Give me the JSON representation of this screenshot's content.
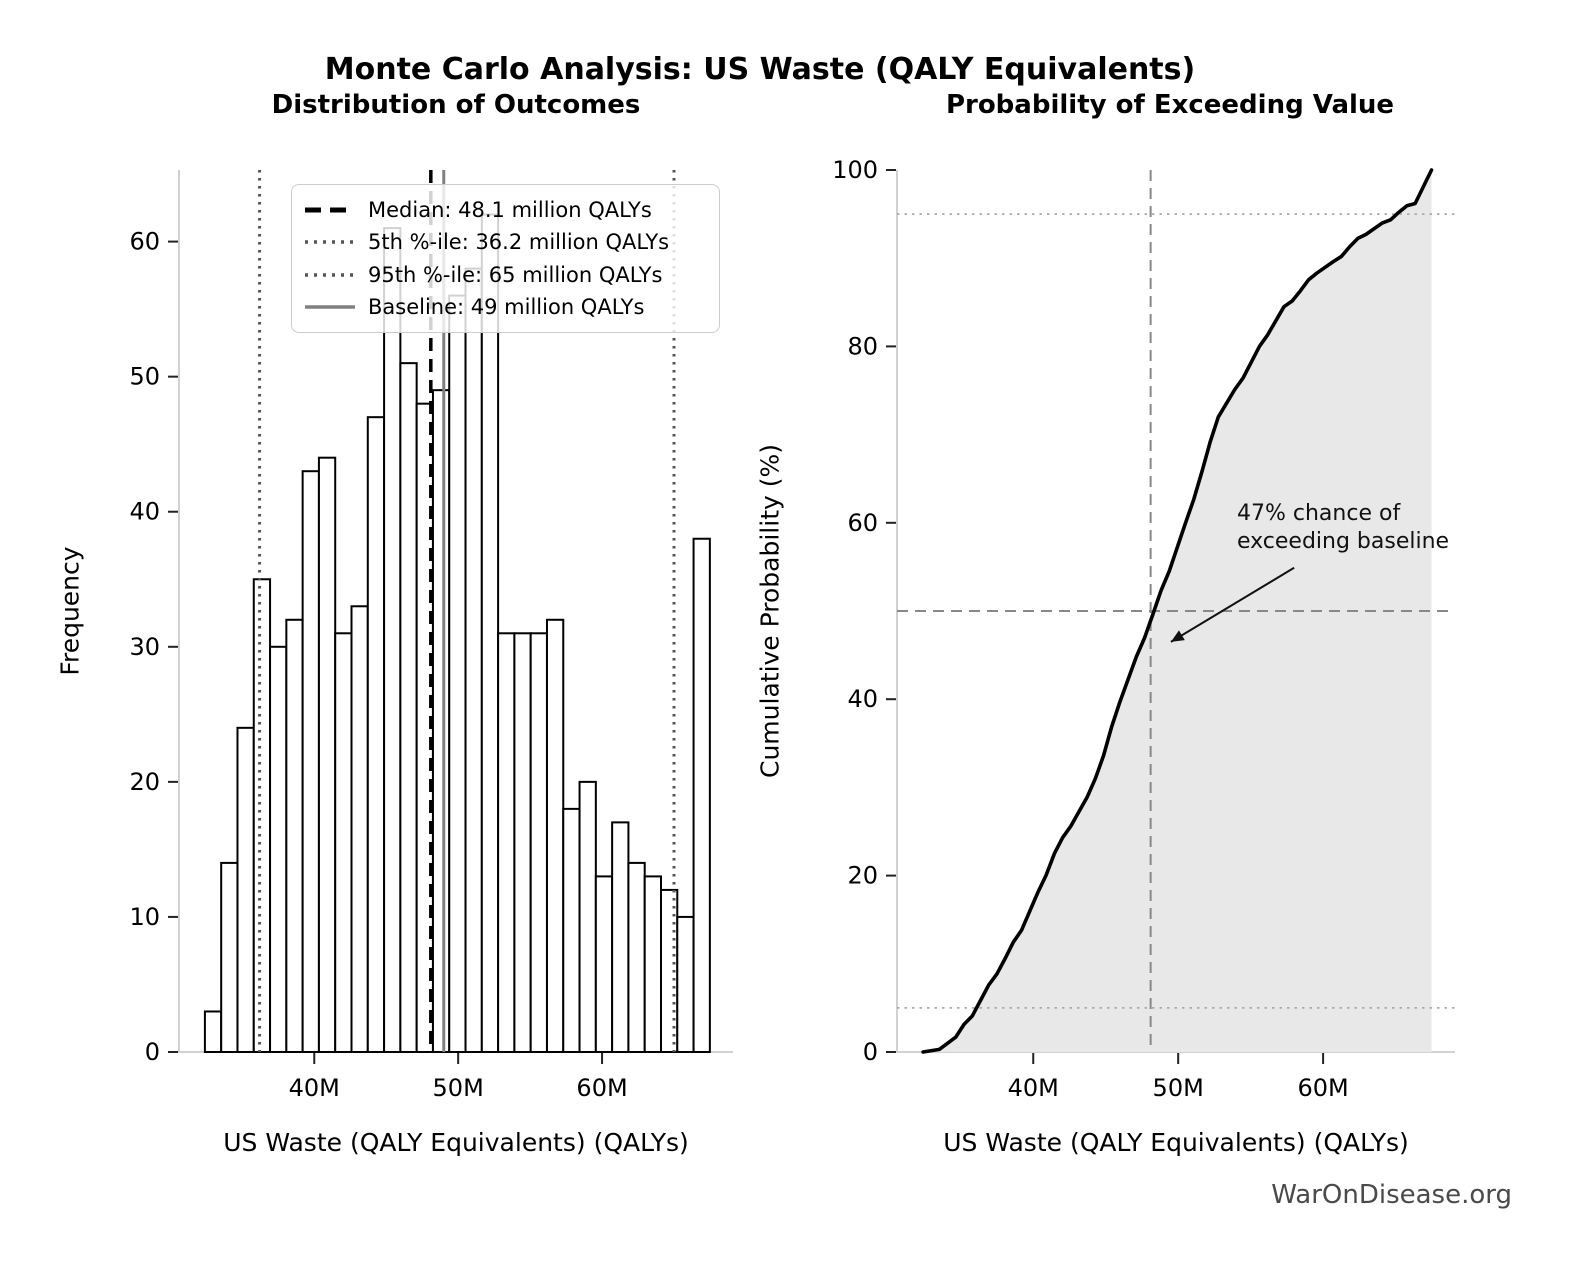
{
  "page": {
    "suptitle": "Monte Carlo Analysis: US Waste (QALY Equivalents)",
    "footer": "WarOnDisease.org"
  },
  "colors": {
    "bar_fill": "#ffffff",
    "bar_edge": "#000000",
    "median": "#000000",
    "percentile": "#555555",
    "baseline": "#808080",
    "cdf_line": "#000000",
    "cdf_fill": "#e8e8e8",
    "ref_dashed": "#888888",
    "ref_dotted": "#aaaaaa",
    "spine": "#cccccc",
    "tick": "#222222",
    "footer_text": "#4a4a4a"
  },
  "chart_data": [
    {
      "type": "bar",
      "subtype": "histogram",
      "title": "Distribution of Outcomes",
      "xlabel": "US Waste (QALY Equivalents) (QALYs)",
      "ylabel": "Frequency",
      "xlim_millions": [
        30.6,
        69.1
      ],
      "ylim": [
        0,
        65.3
      ],
      "x_ticks": [
        {
          "value_million": 40,
          "label": "40M"
        },
        {
          "value_million": 50,
          "label": "50M"
        },
        {
          "value_million": 60,
          "label": "60M"
        }
      ],
      "y_ticks": [
        0,
        10,
        20,
        30,
        40,
        50,
        60
      ],
      "bin_start_million": 32.4,
      "bin_width_million": 1.132,
      "frequencies": [
        3,
        14,
        24,
        35,
        30,
        32,
        43,
        44,
        31,
        33,
        47,
        61,
        51,
        48,
        49,
        56,
        58,
        62,
        31,
        31,
        31,
        32,
        18,
        20,
        13,
        17,
        14,
        13,
        12,
        10,
        38
      ],
      "ref_lines": [
        {
          "id": "median",
          "value_million": 48.1,
          "style": "dashed",
          "color_key": "median",
          "width": 3.5,
          "label": "Median: 48.1 million QALYs"
        },
        {
          "id": "p5",
          "value_million": 36.2,
          "style": "dotted",
          "color_key": "percentile",
          "width": 3,
          "label": "5th %-ile: 36.2 million QALYs"
        },
        {
          "id": "p95",
          "value_million": 65,
          "style": "dotted",
          "color_key": "percentile",
          "width": 3,
          "label": "95th %-ile: 65 million QALYs"
        },
        {
          "id": "baseline",
          "value_million": 49,
          "style": "solid",
          "color_key": "baseline",
          "width": 3,
          "label": "Baseline: 49 million QALYs"
        }
      ],
      "legend_position": "upper-left-inside"
    },
    {
      "type": "line",
      "subtype": "empirical-cdf",
      "title": "Probability of Exceeding Value",
      "xlabel": "US Waste (QALY Equivalents) (QALYs)",
      "ylabel": "Cumulative Probability (%)",
      "xlim_millions": [
        30.6,
        69.1
      ],
      "ylim": [
        0,
        100
      ],
      "x_ticks": [
        {
          "value_million": 40,
          "label": "40M"
        },
        {
          "value_million": 50,
          "label": "50M"
        },
        {
          "value_million": 60,
          "label": "60M"
        }
      ],
      "y_ticks": [
        0,
        20,
        40,
        60,
        80,
        100
      ],
      "points": [
        {
          "x_million": 32.4,
          "cum_pct": 0.0
        },
        {
          "x_million": 33.53,
          "cum_pct": 0.3
        },
        {
          "x_million": 34.66,
          "cum_pct": 1.7
        },
        {
          "x_million": 35.8,
          "cum_pct": 4.1
        },
        {
          "x_million": 36.93,
          "cum_pct": 7.6
        },
        {
          "x_million": 38.06,
          "cum_pct": 10.6
        },
        {
          "x_million": 39.19,
          "cum_pct": 13.8
        },
        {
          "x_million": 40.32,
          "cum_pct": 18.1
        },
        {
          "x_million": 41.46,
          "cum_pct": 22.5
        },
        {
          "x_million": 42.59,
          "cum_pct": 25.6
        },
        {
          "x_million": 43.72,
          "cum_pct": 28.9
        },
        {
          "x_million": 44.85,
          "cum_pct": 33.6
        },
        {
          "x_million": 45.98,
          "cum_pct": 39.7
        },
        {
          "x_million": 47.11,
          "cum_pct": 44.8
        },
        {
          "x_million": 48.25,
          "cum_pct": 49.6
        },
        {
          "x_million": 49.38,
          "cum_pct": 54.5
        },
        {
          "x_million": 50.51,
          "cum_pct": 60.0
        },
        {
          "x_million": 51.64,
          "cum_pct": 65.8
        },
        {
          "x_million": 52.77,
          "cum_pct": 72.0
        },
        {
          "x_million": 53.9,
          "cum_pct": 75.1
        },
        {
          "x_million": 55.04,
          "cum_pct": 78.2
        },
        {
          "x_million": 56.17,
          "cum_pct": 81.3
        },
        {
          "x_million": 57.3,
          "cum_pct": 84.5
        },
        {
          "x_million": 58.43,
          "cum_pct": 86.3
        },
        {
          "x_million": 59.56,
          "cum_pct": 88.3
        },
        {
          "x_million": 60.69,
          "cum_pct": 89.6
        },
        {
          "x_million": 61.83,
          "cum_pct": 91.3
        },
        {
          "x_million": 62.96,
          "cum_pct": 92.7
        },
        {
          "x_million": 64.09,
          "cum_pct": 94.0
        },
        {
          "x_million": 65.22,
          "cum_pct": 95.2
        },
        {
          "x_million": 66.35,
          "cum_pct": 96.2
        },
        {
          "x_million": 67.48,
          "cum_pct": 100.0
        }
      ],
      "reference": {
        "h_dotted_pct": [
          5,
          95
        ],
        "h_dashed_pct": 50,
        "v_dashed_million": 48.1
      },
      "annotation": {
        "line1": "47% chance of",
        "line2": "exceeding baseline",
        "arrow_from": {
          "x_million": 58.0,
          "pct": 54.9
        },
        "arrow_to": {
          "x_million": 49.5,
          "pct": 46.5
        }
      },
      "fill_under_curve": true,
      "legend_position": "none"
    }
  ]
}
